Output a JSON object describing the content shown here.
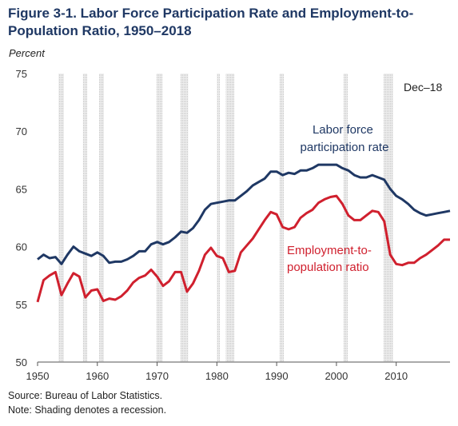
{
  "title": "Figure 3-1. Labor Force Participation Rate and Employment-to-Population Ratio, 1950–2018",
  "unit_label": "Percent",
  "source": "Source: Bureau of Labor Statistics.",
  "note": "Note: Shading denotes a recession.",
  "colors": {
    "lfpr": "#1f3864",
    "epop": "#d0202e",
    "shade": "#d3d3d3",
    "title": "#1f3864"
  },
  "chart_data": {
    "type": "line",
    "title": "Figure 3-1. Labor Force Participation Rate and Employment-to-Population Ratio, 1950–2018",
    "ylabel": "Percent",
    "xlim": [
      1950,
      2019
    ],
    "ylim": [
      50,
      75
    ],
    "x_ticks": [
      1950,
      1960,
      1970,
      1980,
      1990,
      2000,
      2010
    ],
    "y_ticks": [
      50,
      55,
      60,
      65,
      70,
      75
    ],
    "grid": false,
    "corner_label": "Dec–18",
    "recessions": [
      [
        1953.5,
        1954.4
      ],
      [
        1957.6,
        1958.3
      ],
      [
        1960.3,
        1961.1
      ],
      [
        1969.9,
        1970.9
      ],
      [
        1973.9,
        1975.2
      ],
      [
        1980.0,
        1980.5
      ],
      [
        1981.5,
        1982.9
      ],
      [
        1990.5,
        1991.2
      ],
      [
        2001.2,
        2001.9
      ],
      [
        2007.9,
        2009.5
      ]
    ],
    "series": [
      {
        "name": "Labor force participation rate",
        "label_lines": [
          "Labor force",
          "participation rate"
        ],
        "x": [
          1950,
          1951,
          1952,
          1953,
          1954,
          1955,
          1956,
          1957,
          1958,
          1959,
          1960,
          1961,
          1962,
          1963,
          1964,
          1965,
          1966,
          1967,
          1968,
          1969,
          1970,
          1971,
          1972,
          1973,
          1974,
          1975,
          1976,
          1977,
          1978,
          1979,
          1980,
          1981,
          1982,
          1983,
          1984,
          1985,
          1986,
          1987,
          1988,
          1989,
          1990,
          1991,
          1992,
          1993,
          1994,
          1995,
          1996,
          1997,
          1998,
          1999,
          2000,
          2001,
          2002,
          2003,
          2004,
          2005,
          2006,
          2007,
          2008,
          2009,
          2010,
          2011,
          2012,
          2013,
          2014,
          2015,
          2016,
          2017,
          2018,
          2019
        ],
        "values": [
          58.9,
          59.3,
          59.0,
          59.1,
          58.5,
          59.3,
          60.0,
          59.6,
          59.4,
          59.2,
          59.5,
          59.2,
          58.6,
          58.7,
          58.7,
          58.9,
          59.2,
          59.6,
          59.6,
          60.2,
          60.4,
          60.2,
          60.4,
          60.8,
          61.3,
          61.2,
          61.6,
          62.3,
          63.2,
          63.7,
          63.8,
          63.9,
          64.0,
          64.0,
          64.4,
          64.8,
          65.3,
          65.6,
          65.9,
          66.5,
          66.5,
          66.2,
          66.4,
          66.3,
          66.6,
          66.6,
          66.8,
          67.1,
          67.1,
          67.1,
          67.1,
          66.8,
          66.6,
          66.2,
          66.0,
          66.0,
          66.2,
          66.0,
          65.8,
          65.0,
          64.4,
          64.1,
          63.7,
          63.2,
          62.9,
          62.7,
          62.8,
          62.9,
          63.0,
          63.1
        ]
      },
      {
        "name": "Employment-to-population ratio",
        "label_lines": [
          "Employment-to-",
          "population ratio"
        ],
        "x": [
          1950,
          1951,
          1952,
          1953,
          1954,
          1955,
          1956,
          1957,
          1958,
          1959,
          1960,
          1961,
          1962,
          1963,
          1964,
          1965,
          1966,
          1967,
          1968,
          1969,
          1970,
          1971,
          1972,
          1973,
          1974,
          1975,
          1976,
          1977,
          1978,
          1979,
          1980,
          1981,
          1982,
          1983,
          1984,
          1985,
          1986,
          1987,
          1988,
          1989,
          1990,
          1991,
          1992,
          1993,
          1994,
          1995,
          1996,
          1997,
          1998,
          1999,
          2000,
          2001,
          2002,
          2003,
          2004,
          2005,
          2006,
          2007,
          2008,
          2009,
          2010,
          2011,
          2012,
          2013,
          2014,
          2015,
          2016,
          2017,
          2018,
          2019
        ],
        "values": [
          55.2,
          57.1,
          57.5,
          57.8,
          55.8,
          56.8,
          57.7,
          57.4,
          55.6,
          56.2,
          56.3,
          55.3,
          55.5,
          55.4,
          55.7,
          56.2,
          56.9,
          57.3,
          57.5,
          58.0,
          57.4,
          56.6,
          57.0,
          57.8,
          57.8,
          56.1,
          56.8,
          57.9,
          59.3,
          59.9,
          59.2,
          59.0,
          57.8,
          57.9,
          59.5,
          60.1,
          60.7,
          61.5,
          62.3,
          63.0,
          62.8,
          61.7,
          61.5,
          61.7,
          62.5,
          62.9,
          63.2,
          63.8,
          64.1,
          64.3,
          64.4,
          63.7,
          62.7,
          62.3,
          62.3,
          62.7,
          63.1,
          63.0,
          62.2,
          59.3,
          58.5,
          58.4,
          58.6,
          58.6,
          59.0,
          59.3,
          59.7,
          60.1,
          60.6,
          60.6
        ]
      }
    ]
  }
}
